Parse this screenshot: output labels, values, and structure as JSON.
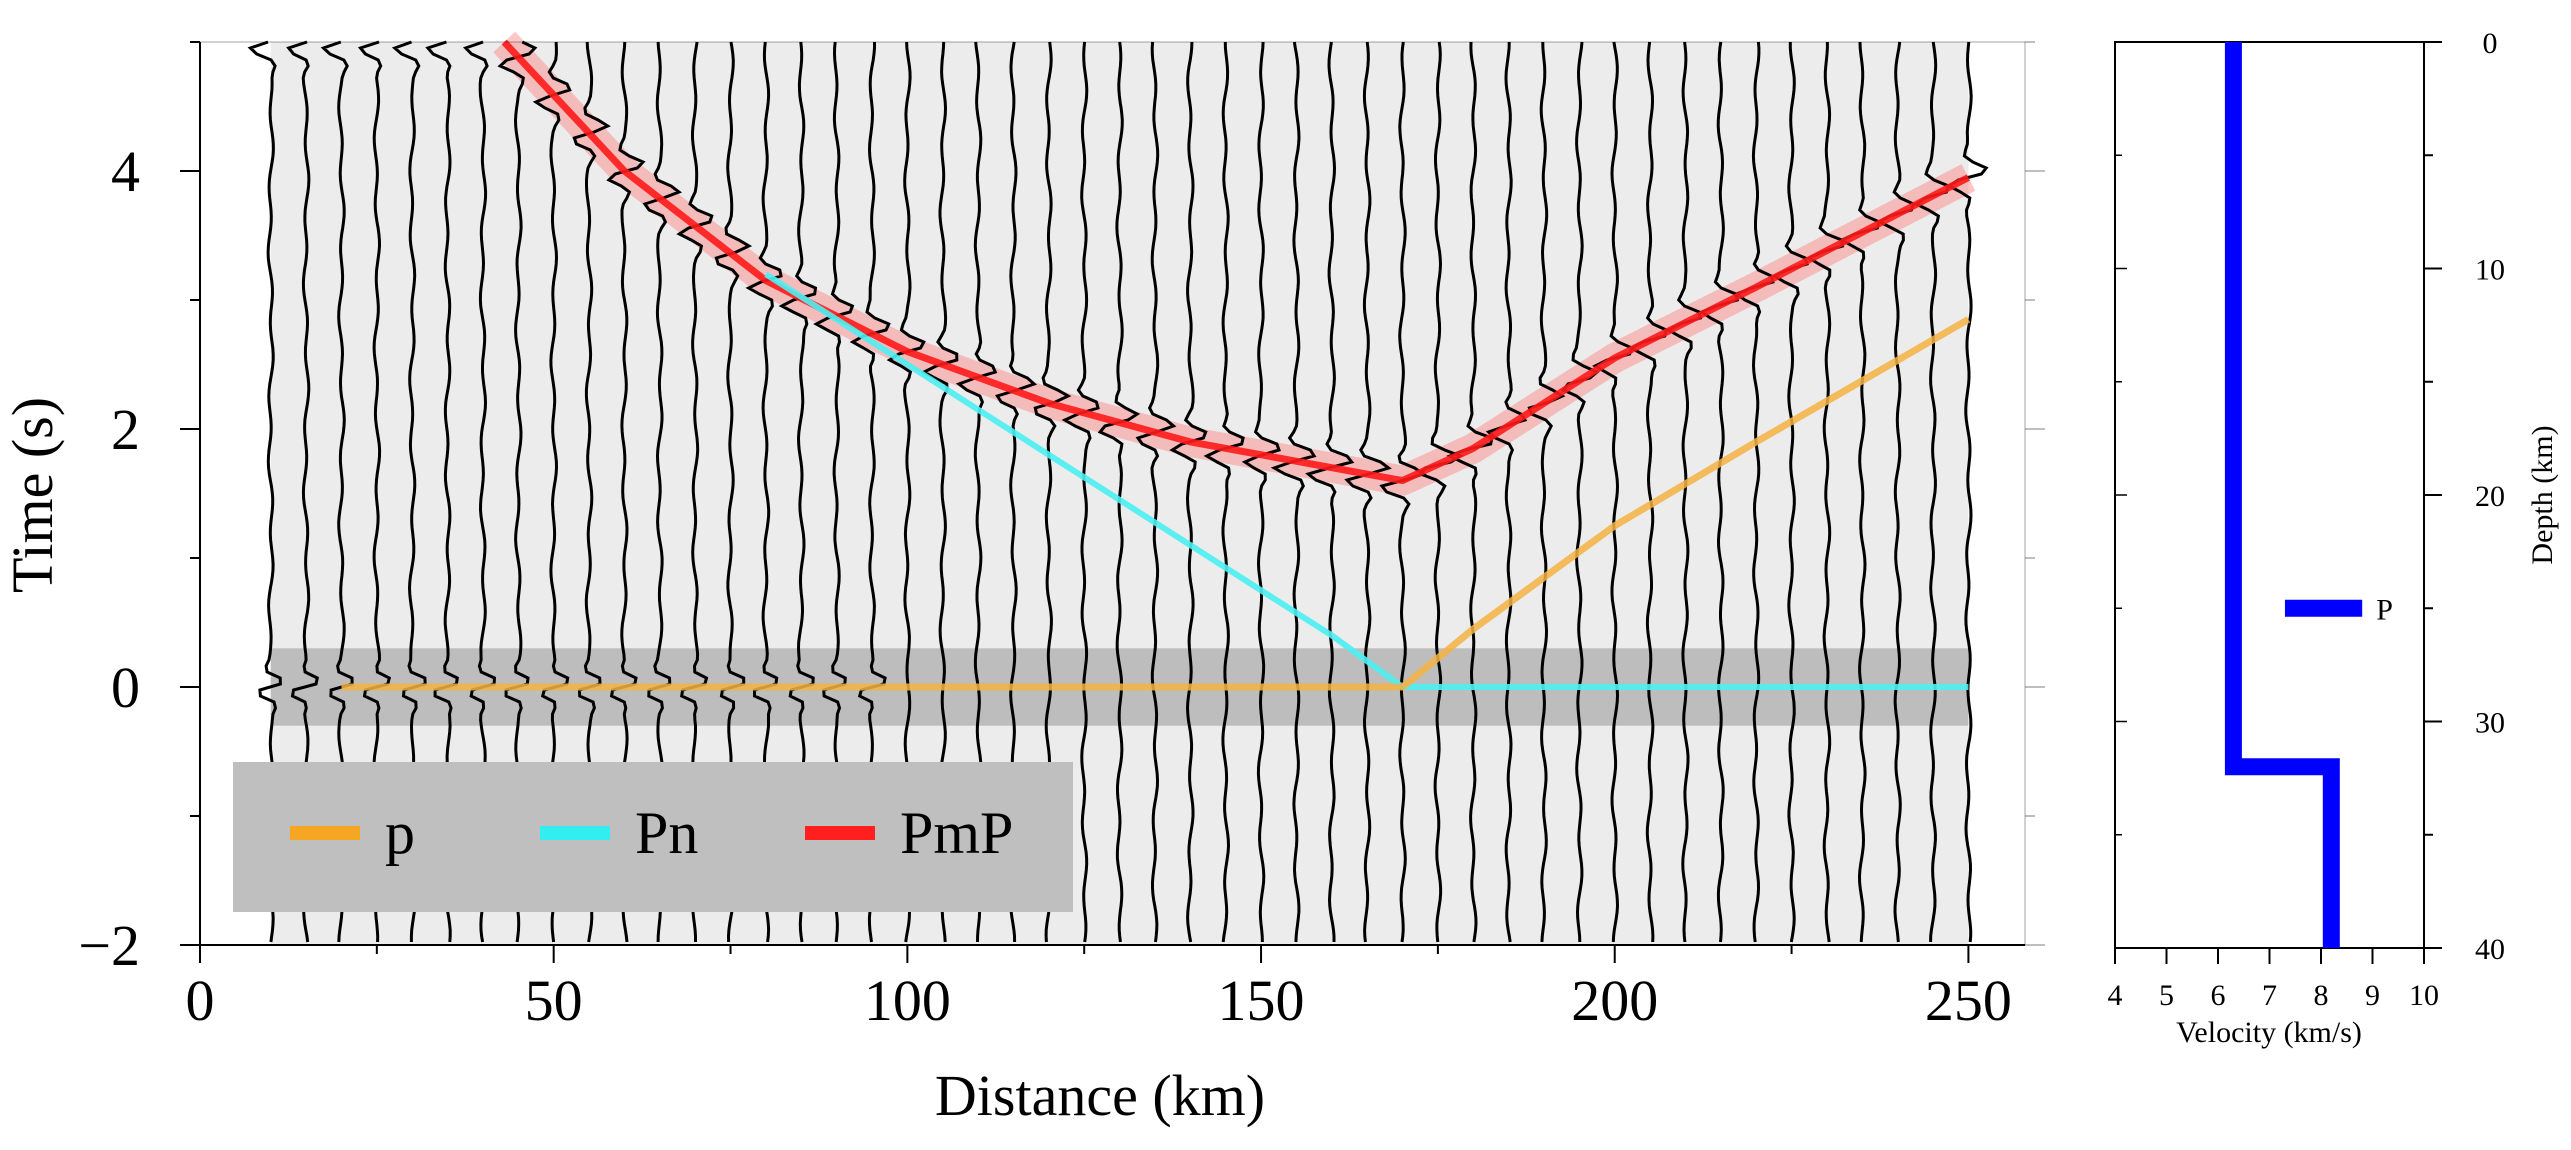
{
  "chart_data": [
    {
      "type": "line",
      "title": "",
      "xlabel": "Distance (km)",
      "ylabel": "Time (s)",
      "xlim": [
        0,
        258
      ],
      "ylim": [
        -2,
        5
      ],
      "xticks": [
        0,
        50,
        100,
        150,
        200,
        250
      ],
      "yticks": [
        -2,
        0,
        2,
        4
      ],
      "x_tick_labels": [
        "0",
        "50",
        "100",
        "150",
        "200",
        "250"
      ],
      "y_tick_labels": [
        "−2",
        "0",
        "2",
        "4"
      ],
      "legend_placement": "bottom-left",
      "source_distance_km": 170,
      "reduced_time_window": [
        -0.3,
        0.3
      ],
      "series": [
        {
          "name": "p",
          "color": "#f5a623",
          "x": [
            20,
            40,
            60,
            80,
            100,
            120,
            140,
            160,
            170,
            180,
            200,
            220,
            250
          ],
          "y": [
            0,
            0,
            0,
            0,
            0,
            0,
            0,
            0,
            0,
            0.45,
            1.25,
            1.9,
            2.85
          ]
        },
        {
          "name": "Pn",
          "color": "#33eef0",
          "x": [
            80,
            90,
            100,
            110,
            120,
            130,
            140,
            150,
            160,
            170,
            200,
            250
          ],
          "y": [
            3.2,
            2.85,
            2.5,
            2.15,
            1.8,
            1.45,
            1.1,
            0.75,
            0.4,
            0,
            0,
            0
          ]
        },
        {
          "name": "PmP",
          "color": "#ff1f1f",
          "x": [
            43,
            60,
            80,
            100,
            120,
            140,
            160,
            170,
            180,
            200,
            220,
            250
          ],
          "y": [
            5.0,
            4.0,
            3.15,
            2.6,
            2.2,
            1.9,
            1.7,
            1.6,
            1.85,
            2.55,
            3.1,
            3.95
          ]
        }
      ],
      "trace_distances_km": [
        10,
        15,
        20,
        25,
        30,
        35,
        40,
        45,
        50,
        55,
        60,
        65,
        70,
        75,
        80,
        85,
        90,
        95,
        100,
        105,
        110,
        115,
        120,
        125,
        130,
        135,
        140,
        145,
        150,
        155,
        160,
        165,
        170,
        175,
        180,
        185,
        190,
        195,
        200,
        205,
        210,
        215,
        220,
        225,
        230,
        235,
        240,
        245,
        250
      ]
    },
    {
      "type": "line",
      "title": "",
      "xlabel": "Velocity (km/s)",
      "ylabel": "Depth (km)",
      "xlim": [
        4,
        10
      ],
      "ylim": [
        40,
        0
      ],
      "xticks": [
        4,
        5,
        6,
        7,
        8,
        9,
        10
      ],
      "yticks": [
        0,
        10,
        20,
        30,
        40
      ],
      "x_tick_labels": [
        "4",
        "5",
        "6",
        "7",
        "8",
        "9",
        "10"
      ],
      "y_tick_labels": [
        "0",
        "10",
        "20",
        "30",
        "40"
      ],
      "series": [
        {
          "name": "",
          "color": "#0000ff",
          "x": [
            6.3,
            6.3,
            8.2,
            8.2
          ],
          "y": [
            0,
            32,
            32,
            40
          ]
        }
      ],
      "source_marker": {
        "label": "P",
        "depth_km": 25,
        "velocity_range": [
          7.3,
          8.8
        ],
        "color": "#0000ff"
      }
    }
  ]
}
